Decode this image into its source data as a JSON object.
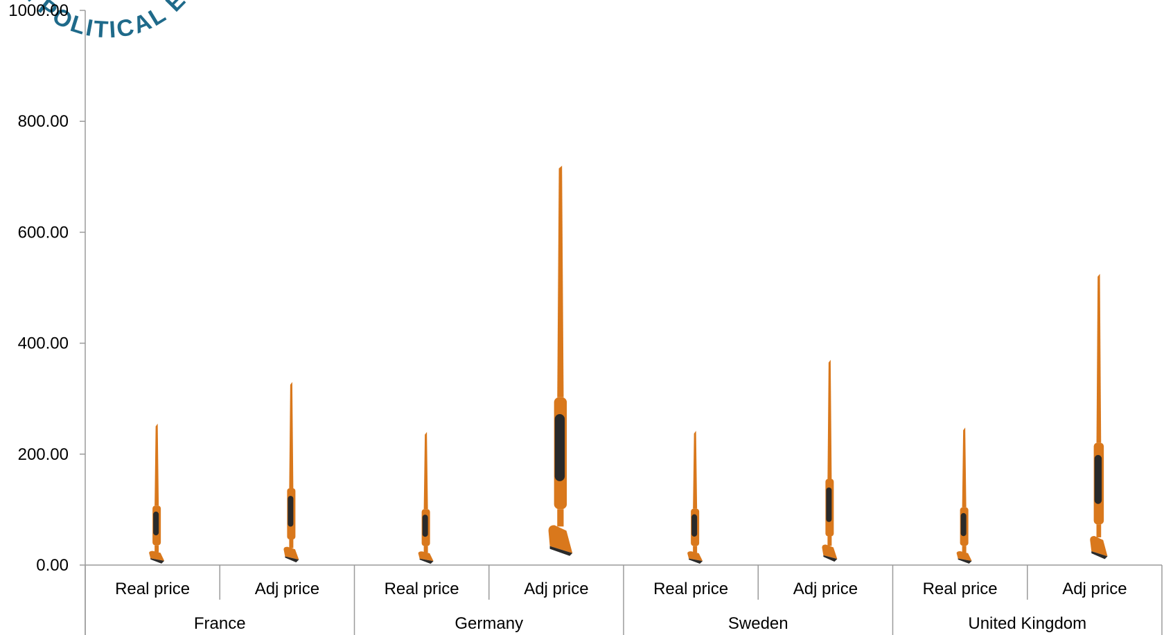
{
  "chart_data": {
    "type": "bar",
    "ylim": [
      0,
      1000
    ],
    "yticks": [
      "0.00",
      "200.00",
      "400.00",
      "600.00",
      "800.00",
      "1000.00"
    ],
    "groups": [
      "France",
      "Germany",
      "Sweden",
      "United Kingdom"
    ],
    "categories": [
      "Real price",
      "Adj price"
    ],
    "values": [
      [
        255,
        330
      ],
      [
        240,
        720
      ],
      [
        242,
        370
      ],
      [
        248,
        525
      ]
    ],
    "bar_color": "#d9781c",
    "bar_dark_color": "#2a2a2a",
    "axis_color": "#9a9a9a"
  },
  "watermark": {
    "text": "AL POLITICAL ECO",
    "color": "#1f6a8a"
  }
}
